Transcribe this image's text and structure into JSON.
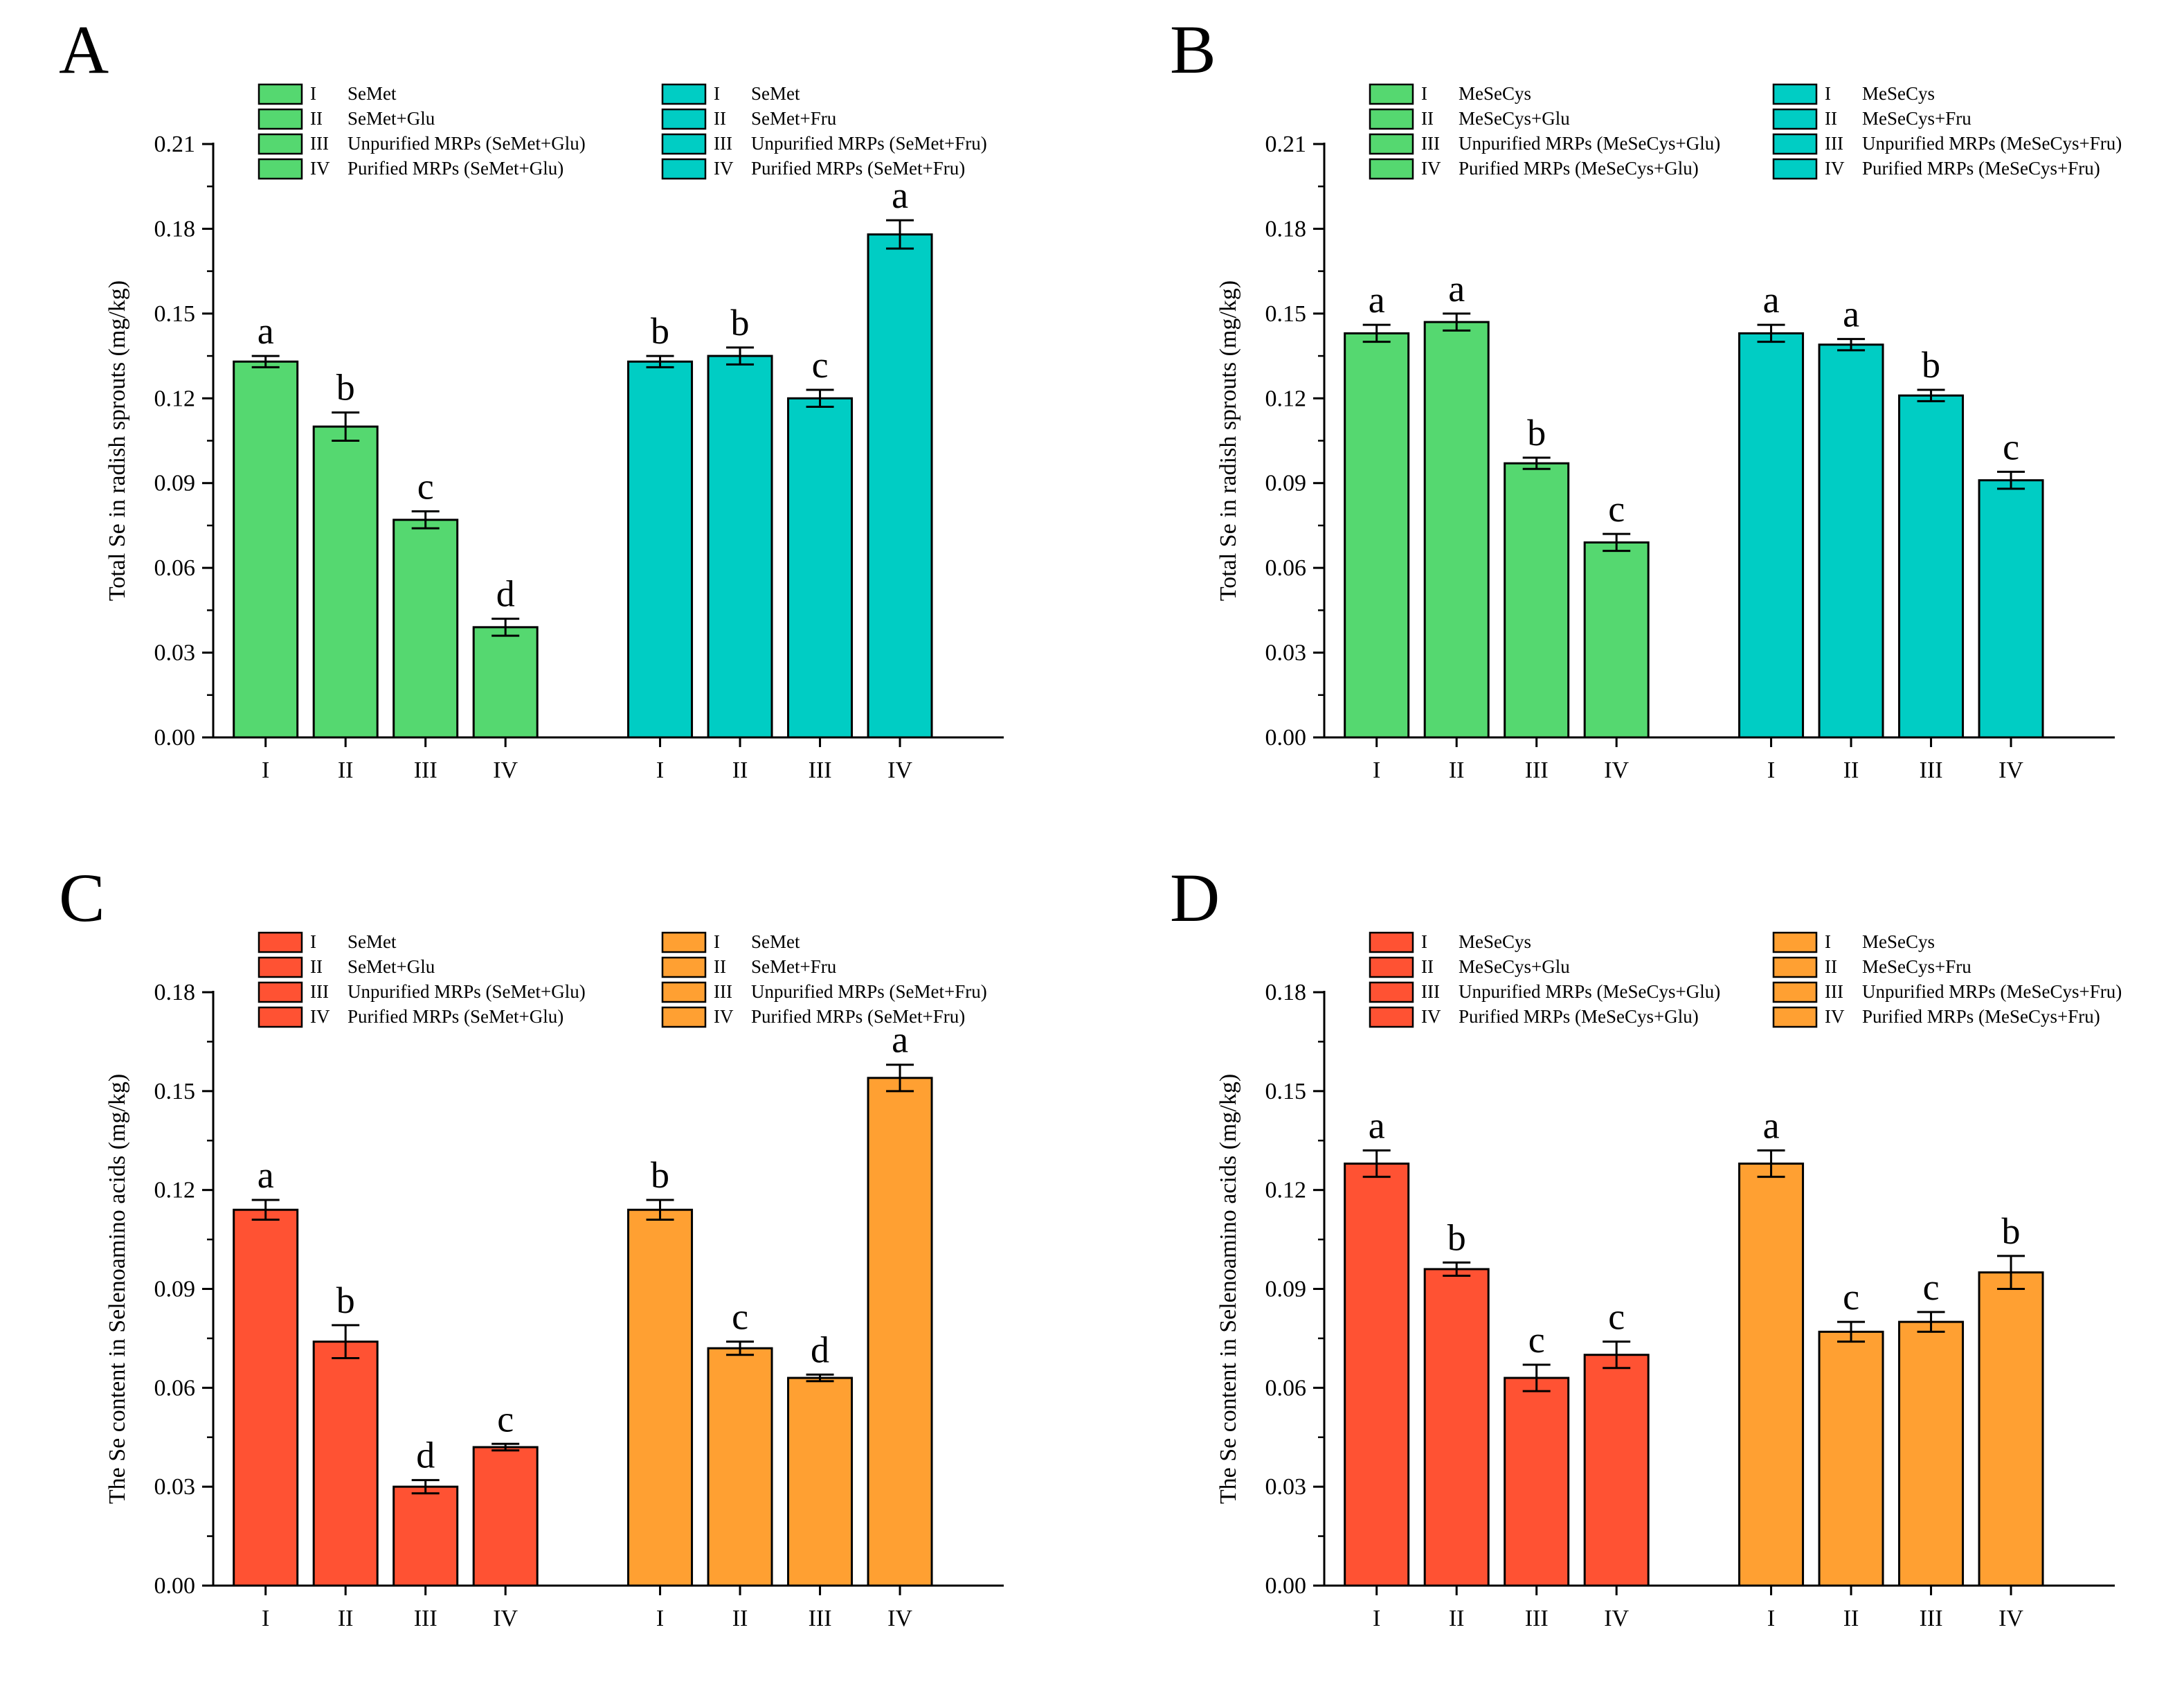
{
  "chart_data": [
    {
      "panel": "A",
      "type": "bar",
      "ylabel": "Total Se in radish sprouts (mg/kg)",
      "ylim": [
        0,
        0.21
      ],
      "yticks": [
        "0.00",
        "0.03",
        "0.06",
        "0.09",
        "0.12",
        "0.15",
        "0.18",
        "0.21"
      ],
      "categories": [
        "I",
        "II",
        "III",
        "IV"
      ],
      "groups": [
        {
          "color": "#55d870",
          "values": [
            0.133,
            0.11,
            0.077,
            0.039
          ],
          "errors": [
            0.002,
            0.005,
            0.003,
            0.003
          ],
          "letters": [
            "a",
            "b",
            "c",
            "d"
          ],
          "legend": [
            {
              "num": "I",
              "text": "SeMet"
            },
            {
              "num": "II",
              "text": "SeMet+Glu"
            },
            {
              "num": "III",
              "text": "Unpurified MRPs (SeMet+Glu)"
            },
            {
              "num": "IV",
              "text": "Purified MRPs (SeMet+Glu)"
            }
          ]
        },
        {
          "color": "#00cdc4",
          "values": [
            0.133,
            0.135,
            0.12,
            0.178
          ],
          "errors": [
            0.002,
            0.003,
            0.003,
            0.005
          ],
          "letters": [
            "b",
            "b",
            "c",
            "a"
          ],
          "legend": [
            {
              "num": "I",
              "text": "SeMet"
            },
            {
              "num": "II",
              "text": "SeMet+Fru"
            },
            {
              "num": "III",
              "text": "Unpurified MRPs (SeMet+Fru)"
            },
            {
              "num": "IV",
              "text": "Purified MRPs (SeMet+Fru)"
            }
          ]
        }
      ]
    },
    {
      "panel": "B",
      "type": "bar",
      "ylabel": "Total Se in radish sprouts (mg/kg)",
      "ylim": [
        0,
        0.21
      ],
      "yticks": [
        "0.00",
        "0.03",
        "0.06",
        "0.09",
        "0.12",
        "0.15",
        "0.18",
        "0.21"
      ],
      "categories": [
        "I",
        "II",
        "III",
        "IV"
      ],
      "groups": [
        {
          "color": "#55d870",
          "values": [
            0.143,
            0.147,
            0.097,
            0.069
          ],
          "errors": [
            0.003,
            0.003,
            0.002,
            0.003
          ],
          "letters": [
            "a",
            "a",
            "b",
            "c"
          ],
          "legend": [
            {
              "num": "I",
              "text": "MeSeCys"
            },
            {
              "num": "II",
              "text": "MeSeCys+Glu"
            },
            {
              "num": "III",
              "text": "Unpurified MRPs (MeSeCys+Glu)"
            },
            {
              "num": "IV",
              "text": "Purified MRPs (MeSeCys+Glu)"
            }
          ]
        },
        {
          "color": "#00cdc4",
          "values": [
            0.143,
            0.139,
            0.121,
            0.091
          ],
          "errors": [
            0.003,
            0.002,
            0.002,
            0.003
          ],
          "letters": [
            "a",
            "a",
            "b",
            "c"
          ],
          "legend": [
            {
              "num": "I",
              "text": "MeSeCys"
            },
            {
              "num": "II",
              "text": "MeSeCys+Fru"
            },
            {
              "num": "III",
              "text": "Unpurified MRPs (MeSeCys+Fru)"
            },
            {
              "num": "IV",
              "text": "Purified MRPs (MeSeCys+Fru)"
            }
          ]
        }
      ]
    },
    {
      "panel": "C",
      "type": "bar",
      "ylabel": "The Se content in Selenoamino acids (mg/kg)",
      "ylim": [
        0,
        0.18
      ],
      "yticks": [
        "0.00",
        "0.03",
        "0.06",
        "0.09",
        "0.12",
        "0.15",
        "0.18"
      ],
      "categories": [
        "I",
        "II",
        "III",
        "IV"
      ],
      "groups": [
        {
          "color": "#ff5233",
          "values": [
            0.114,
            0.074,
            0.03,
            0.042
          ],
          "errors": [
            0.003,
            0.005,
            0.002,
            0.001
          ],
          "letters": [
            "a",
            "b",
            "d",
            "c"
          ],
          "legend": [
            {
              "num": "I",
              "text": "SeMet"
            },
            {
              "num": "II",
              "text": "SeMet+Glu"
            },
            {
              "num": "III",
              "text": "Unpurified MRPs (SeMet+Glu)"
            },
            {
              "num": "IV",
              "text": "Purified MRPs (SeMet+Glu)"
            }
          ]
        },
        {
          "color": "#ffa032",
          "values": [
            0.114,
            0.072,
            0.063,
            0.154
          ],
          "errors": [
            0.003,
            0.002,
            0.001,
            0.004
          ],
          "letters": [
            "b",
            "c",
            "d",
            "a"
          ],
          "legend": [
            {
              "num": "I",
              "text": "SeMet"
            },
            {
              "num": "II",
              "text": "SeMet+Fru"
            },
            {
              "num": "III",
              "text": "Unpurified MRPs (SeMet+Fru)"
            },
            {
              "num": "IV",
              "text": "Purified MRPs (SeMet+Fru)"
            }
          ]
        }
      ]
    },
    {
      "panel": "D",
      "type": "bar",
      "ylabel": "The Se content in Selenoamino acids (mg/kg)",
      "ylim": [
        0,
        0.18
      ],
      "yticks": [
        "0.00",
        "0.03",
        "0.06",
        "0.09",
        "0.12",
        "0.15",
        "0.18"
      ],
      "categories": [
        "I",
        "II",
        "III",
        "IV"
      ],
      "groups": [
        {
          "color": "#ff5233",
          "values": [
            0.128,
            0.096,
            0.063,
            0.07
          ],
          "errors": [
            0.004,
            0.002,
            0.004,
            0.004
          ],
          "letters": [
            "a",
            "b",
            "c",
            "c"
          ],
          "legend": [
            {
              "num": "I",
              "text": "MeSeCys"
            },
            {
              "num": "II",
              "text": "MeSeCys+Glu"
            },
            {
              "num": "III",
              "text": "Unpurified MRPs (MeSeCys+Glu)"
            },
            {
              "num": "IV",
              "text": "Purified MRPs (MeSeCys+Glu)"
            }
          ]
        },
        {
          "color": "#ffa032",
          "values": [
            0.128,
            0.077,
            0.08,
            0.095
          ],
          "errors": [
            0.004,
            0.003,
            0.003,
            0.005
          ],
          "letters": [
            "a",
            "c",
            "c",
            "b"
          ],
          "legend": [
            {
              "num": "I",
              "text": "MeSeCys"
            },
            {
              "num": "II",
              "text": "MeSeCys+Fru"
            },
            {
              "num": "III",
              "text": "Unpurified MRPs (MeSeCys+Fru)"
            },
            {
              "num": "IV",
              "text": "Purified MRPs (MeSeCys+Fru)"
            }
          ]
        }
      ]
    }
  ]
}
